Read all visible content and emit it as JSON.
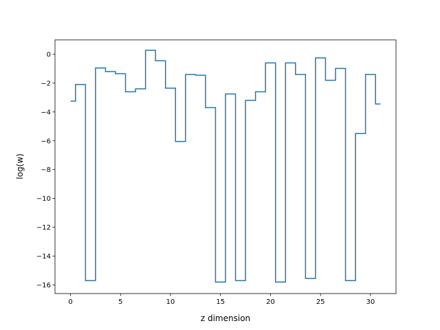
{
  "chart_data": {
    "type": "line",
    "drawstyle": "steps-mid",
    "title": "",
    "xlabel": "z dimension",
    "ylabel": "log(w)",
    "xlim": [
      -1.55,
      32.55
    ],
    "ylim": [
      -16.6,
      1.0
    ],
    "x_ticks": [
      0,
      5,
      10,
      15,
      20,
      25,
      30
    ],
    "y_ticks": [
      0,
      -2,
      -4,
      -6,
      -8,
      -10,
      -12,
      -14,
      -16
    ],
    "grid": false,
    "series": [
      {
        "color": "#1f77b4",
        "x": [
          0,
          1,
          2,
          3,
          4,
          5,
          6,
          7,
          8,
          9,
          10,
          11,
          12,
          13,
          14,
          15,
          16,
          17,
          18,
          19,
          20,
          21,
          22,
          23,
          24,
          25,
          26,
          27,
          28,
          29,
          30,
          31
        ],
        "y": [
          -3.25,
          -2.1,
          -15.7,
          -0.95,
          -1.2,
          -1.35,
          -2.6,
          -2.4,
          0.28,
          -0.45,
          -2.35,
          -6.05,
          -1.4,
          -1.45,
          -3.7,
          -15.8,
          -2.75,
          -15.7,
          -3.2,
          -2.6,
          -0.6,
          -15.8,
          -0.6,
          -1.4,
          -15.55,
          -0.25,
          -1.8,
          -0.98,
          -15.7,
          -5.5,
          -1.4,
          -3.45
        ]
      }
    ]
  }
}
